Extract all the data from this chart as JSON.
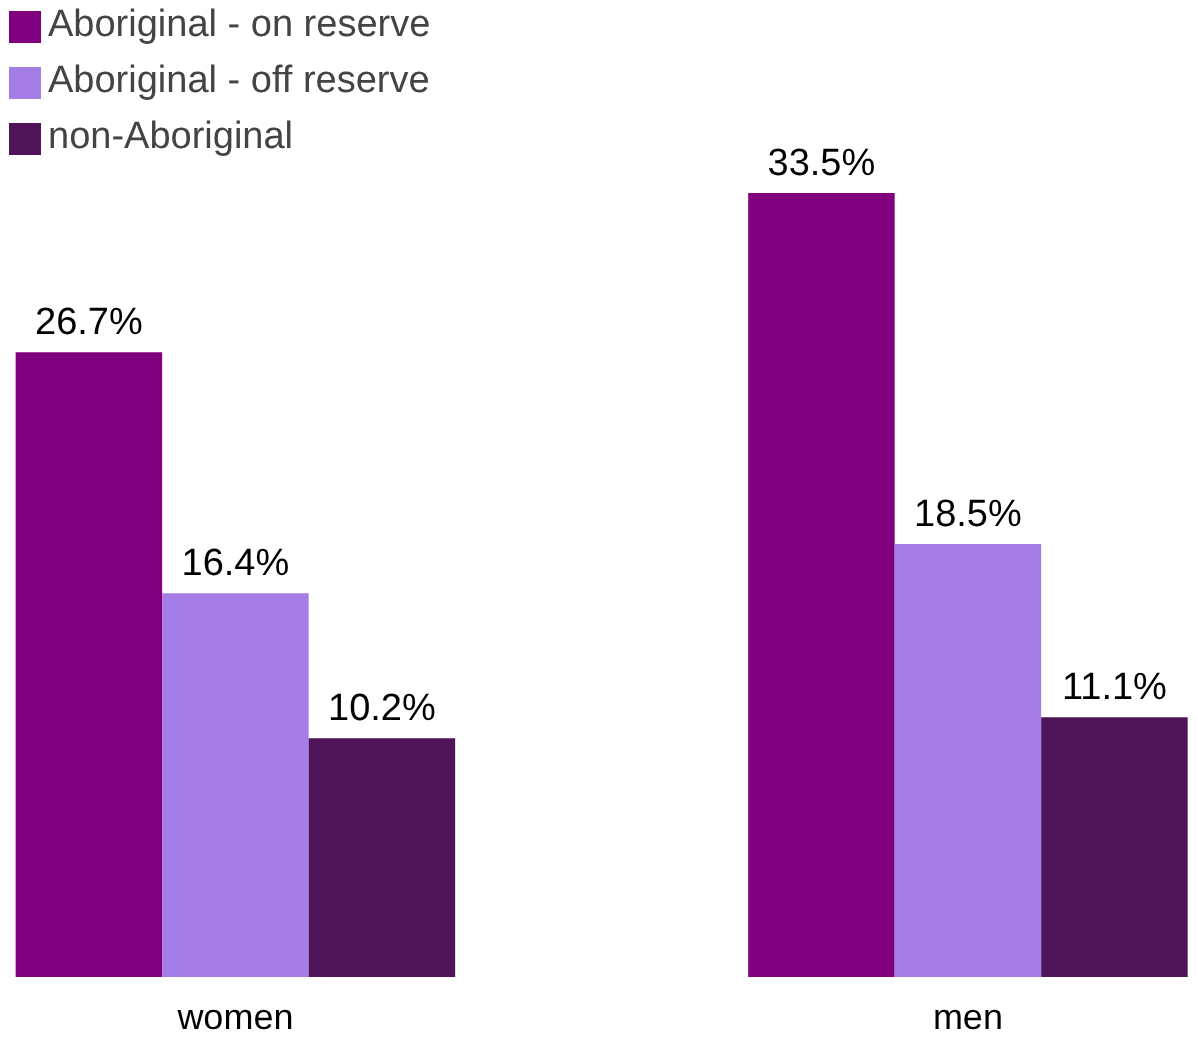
{
  "chart_data": {
    "type": "bar",
    "categories": [
      "women",
      "men"
    ],
    "series": [
      {
        "name": "Aboriginal - on reserve",
        "color": "#800080",
        "values": [
          26.7,
          33.5
        ],
        "value_labels": [
          "26.7%",
          "33.5%"
        ]
      },
      {
        "name": "Aboriginal - off reserve",
        "color": "#a57de6",
        "values": [
          16.4,
          18.5
        ],
        "value_labels": [
          "16.4%",
          "18.5%"
        ]
      },
      {
        "name": "non-Aboriginal",
        "color": "#4f1457",
        "values": [
          10.2,
          11.1
        ],
        "value_labels": [
          "10.2%",
          "11.1%"
        ]
      }
    ],
    "legend": "top left",
    "grid": false
  }
}
